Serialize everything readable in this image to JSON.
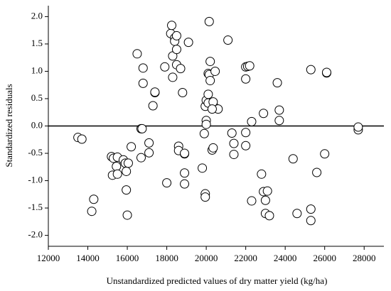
{
  "chart_data": {
    "type": "scatter",
    "x_label": "Unstandardized predicted values of dry matter yield (kg/ha)",
    "y_label": "Standardized residuals",
    "xlim": [
      12000,
      29000
    ],
    "ylim": [
      -2.2,
      2.2
    ],
    "xticks": [
      12000,
      14000,
      16000,
      18000,
      20000,
      22000,
      24000,
      26000,
      28000
    ],
    "yticks": [
      {
        "value": -2,
        "label": "-2.0"
      },
      {
        "value": -1.5,
        "label": "-1.5"
      },
      {
        "value": -1,
        "label": "-1.0"
      },
      {
        "value": -0.5,
        "label": "-0.5"
      },
      {
        "value": 0,
        "label": "0.0"
      },
      {
        "value": 0.5,
        "label": "0.5"
      },
      {
        "value": 1,
        "label": "1.0"
      },
      {
        "value": 1.5,
        "label": "1.5"
      },
      {
        "value": 2,
        "label": "2.0"
      }
    ],
    "hline": 0,
    "color": "#ffffff",
    "x": [
      13500,
      13700,
      14300,
      14200,
      15200,
      15300,
      15450,
      15500,
      15250,
      15500,
      15800,
      15900,
      15950,
      16050,
      15950,
      16000,
      16200,
      16500,
      16700,
      16750,
      16800,
      16800,
      16700,
      17100,
      17100,
      17300,
      17400,
      17400,
      17900,
      18000,
      18200,
      18250,
      18300,
      18300,
      18400,
      18400,
      18500,
      18500,
      18500,
      18700,
      18600,
      18600,
      18800,
      18900,
      18900,
      18900,
      18900,
      19100,
      19800,
      19900,
      19950,
      19950,
      20000,
      20000,
      19950,
      20000,
      20100,
      20100,
      20100,
      20150,
      20200,
      20150,
      20200,
      20300,
      20350,
      20400,
      20350,
      20450,
      20600,
      20300,
      21100,
      21300,
      21400,
      21400,
      22000,
      22000,
      22100,
      22200,
      22000,
      22000,
      22300,
      22300,
      22800,
      22900,
      22900,
      23000,
      23000,
      23100,
      23200,
      23600,
      23700,
      23700,
      24400,
      24600,
      25300,
      25300,
      25300,
      25600,
      26000,
      26100,
      26100,
      27700,
      27700
    ],
    "values": [
      -0.21,
      -0.24,
      -1.34,
      -1.56,
      -0.56,
      -0.59,
      -0.74,
      -0.57,
      -0.9,
      -0.88,
      -0.62,
      -0.68,
      -0.83,
      -0.68,
      -1.17,
      -1.63,
      -0.38,
      1.32,
      -0.05,
      -0.05,
      1.06,
      0.78,
      -0.58,
      -0.31,
      -0.49,
      0.37,
      0.61,
      0.62,
      1.08,
      -1.04,
      1.69,
      1.84,
      1.28,
      0.89,
      1.61,
      1.55,
      1.65,
      1.4,
      1.12,
      1.05,
      -0.37,
      -0.45,
      0.61,
      -0.51,
      -0.5,
      -0.86,
      -1.06,
      1.53,
      -0.77,
      -0.14,
      -1.24,
      -1.3,
      0.1,
      0.03,
      0.36,
      0.47,
      0.58,
      0.42,
      0.96,
      0.94,
      1.18,
      1.91,
      0.83,
      -0.44,
      -0.4,
      0.35,
      0.44,
      1.0,
      0.31,
      0.31,
      1.57,
      -0.13,
      -0.32,
      -0.52,
      1.08,
      0.86,
      1.09,
      1.1,
      -0.12,
      -0.36,
      0.08,
      -1.37,
      -0.88,
      0.23,
      -1.2,
      -1.36,
      -1.6,
      -1.19,
      -1.64,
      0.79,
      0.1,
      0.29,
      -0.6,
      -1.6,
      1.03,
      -1.52,
      -1.73,
      -0.85,
      -0.51,
      0.97,
      0.98,
      -0.07,
      -0.02
    ]
  }
}
